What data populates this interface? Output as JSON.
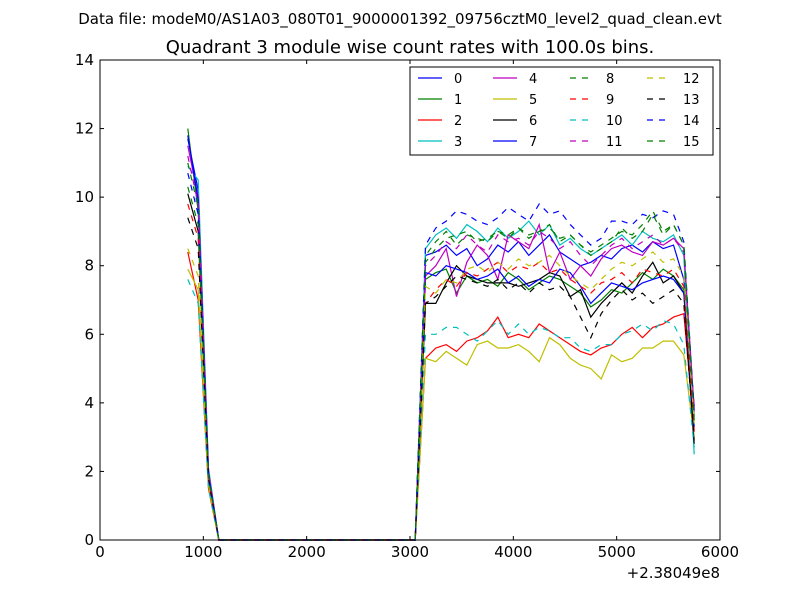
{
  "page": {
    "suptitle": "Data file: modeM0/AS1A03_080T01_9000001392_09756cztM0_level2_quad_clean.evt"
  },
  "chart_data": {
    "type": "line",
    "title": "Quadrant 3 module wise count rates with 100.0s bins.",
    "xlabel": "",
    "ylabel": "",
    "x_offset_label": "+2.38049e8",
    "xlim": [
      0,
      6000
    ],
    "ylim": [
      0,
      14
    ],
    "x_ticks": [
      0,
      1000,
      2000,
      3000,
      4000,
      5000,
      6000
    ],
    "x_tick_labels": [
      "0",
      "1000",
      "2000",
      "3000",
      "4000",
      "5000",
      "6000"
    ],
    "y_ticks": [
      0,
      2,
      4,
      6,
      8,
      10,
      12,
      14
    ],
    "y_tick_labels": [
      "0",
      "2",
      "4",
      "6",
      "8",
      "10",
      "12",
      "14"
    ],
    "legend_position": "top-right",
    "legend_columns": 4,
    "x": [
      850,
      950,
      1050,
      1150,
      1250,
      1350,
      1450,
      1550,
      1650,
      1750,
      1850,
      1950,
      2050,
      2150,
      2250,
      2350,
      2450,
      2550,
      2650,
      2750,
      2850,
      2950,
      3050,
      3150,
      3250,
      3350,
      3450,
      3550,
      3650,
      3750,
      3850,
      3950,
      4050,
      4150,
      4250,
      4350,
      4450,
      4550,
      4650,
      4750,
      4850,
      4950,
      5050,
      5150,
      5250,
      5350,
      5450,
      5550,
      5650,
      5750
    ],
    "series": [
      {
        "name": "0",
        "color": "#0000ff",
        "dashed": false,
        "values": [
          11.7,
          10.2,
          2.0,
          0,
          0,
          0,
          0,
          0,
          0,
          0,
          0,
          0,
          0,
          0,
          0,
          0,
          0,
          0,
          0,
          0,
          0,
          0,
          0,
          8.3,
          8.4,
          8.6,
          8.3,
          8.5,
          8.0,
          8.2,
          8.6,
          8.4,
          8.7,
          8.3,
          8.6,
          8.9,
          8.4,
          8.2,
          8.0,
          8.1,
          8.3,
          8.2,
          8.5,
          8.6,
          8.4,
          8.7,
          8.5,
          8.6,
          7.6,
          3.9
        ]
      },
      {
        "name": "1",
        "color": "#008000",
        "dashed": false,
        "values": [
          12.0,
          9.6,
          1.8,
          0,
          0,
          0,
          0,
          0,
          0,
          0,
          0,
          0,
          0,
          0,
          0,
          0,
          0,
          0,
          0,
          0,
          0,
          0,
          0,
          7.6,
          7.8,
          7.9,
          7.2,
          7.7,
          7.5,
          7.6,
          7.4,
          7.8,
          7.6,
          7.3,
          7.5,
          7.7,
          7.6,
          7.4,
          7.2,
          6.8,
          7.0,
          7.3,
          7.2,
          7.5,
          7.8,
          7.6,
          7.9,
          7.7,
          7.3,
          3.6
        ]
      },
      {
        "name": "2",
        "color": "#ff0000",
        "dashed": false,
        "values": [
          8.4,
          7.0,
          1.5,
          0,
          0,
          0,
          0,
          0,
          0,
          0,
          0,
          0,
          0,
          0,
          0,
          0,
          0,
          0,
          0,
          0,
          0,
          0,
          0,
          5.3,
          5.6,
          5.7,
          5.5,
          5.8,
          5.9,
          6.1,
          6.5,
          5.9,
          6.0,
          5.9,
          6.3,
          6.1,
          5.9,
          5.7,
          5.5,
          5.4,
          5.6,
          5.7,
          6.0,
          6.2,
          5.9,
          6.2,
          6.3,
          6.5,
          6.6,
          3.2
        ]
      },
      {
        "name": "3",
        "color": "#00bfbf",
        "dashed": false,
        "values": [
          10.9,
          10.5,
          2.1,
          0,
          0,
          0,
          0,
          0,
          0,
          0,
          0,
          0,
          0,
          0,
          0,
          0,
          0,
          0,
          0,
          0,
          0,
          0,
          0,
          8.5,
          8.9,
          9.1,
          8.8,
          9.2,
          9.0,
          8.7,
          9.1,
          8.8,
          9.0,
          9.3,
          8.9,
          9.2,
          8.6,
          8.8,
          8.5,
          8.3,
          8.5,
          8.7,
          8.9,
          8.6,
          9.0,
          8.8,
          8.7,
          8.9,
          8.3,
          2.5
        ]
      },
      {
        "name": "4",
        "color": "#bf00bf",
        "dashed": false,
        "values": [
          11.5,
          10.0,
          2.0,
          0,
          0,
          0,
          0,
          0,
          0,
          0,
          0,
          0,
          0,
          0,
          0,
          0,
          0,
          0,
          0,
          0,
          0,
          0,
          0,
          7.7,
          8.0,
          8.5,
          7.1,
          8.1,
          8.6,
          8.3,
          7.6,
          8.9,
          8.7,
          8.5,
          9.2,
          7.8,
          8.4,
          7.6,
          8.0,
          7.7,
          8.2,
          8.5,
          8.6,
          8.4,
          8.3,
          8.7,
          8.6,
          8.8,
          8.5,
          3.8
        ]
      },
      {
        "name": "5",
        "color": "#bfbf00",
        "dashed": false,
        "values": [
          7.9,
          7.3,
          1.6,
          0,
          0,
          0,
          0,
          0,
          0,
          0,
          0,
          0,
          0,
          0,
          0,
          0,
          0,
          0,
          0,
          0,
          0,
          0,
          0,
          5.3,
          5.2,
          5.5,
          5.3,
          5.1,
          5.7,
          5.8,
          5.6,
          5.6,
          5.7,
          5.5,
          5.2,
          5.9,
          5.7,
          5.3,
          5.1,
          5.0,
          4.7,
          5.4,
          5.2,
          5.3,
          5.6,
          5.6,
          5.8,
          5.8,
          5.4,
          3.0
        ]
      },
      {
        "name": "6",
        "color": "#000000",
        "dashed": false,
        "values": [
          10.1,
          9.0,
          1.9,
          0,
          0,
          0,
          0,
          0,
          0,
          0,
          0,
          0,
          0,
          0,
          0,
          0,
          0,
          0,
          0,
          0,
          0,
          0,
          0,
          6.9,
          6.9,
          7.5,
          8.0,
          7.7,
          7.6,
          7.5,
          7.5,
          7.5,
          7.4,
          7.5,
          7.6,
          7.8,
          7.7,
          7.1,
          7.3,
          6.5,
          6.9,
          7.2,
          7.5,
          7.2,
          7.7,
          8.1,
          7.5,
          7.7,
          7.2,
          2.8
        ]
      },
      {
        "name": "7",
        "color": "#0000ff",
        "dashed": false,
        "values": [
          11.8,
          9.9,
          1.9,
          0,
          0,
          0,
          0,
          0,
          0,
          0,
          0,
          0,
          0,
          0,
          0,
          0,
          0,
          0,
          0,
          0,
          0,
          0,
          0,
          7.8,
          7.7,
          8.0,
          7.9,
          7.8,
          7.6,
          7.7,
          7.9,
          7.5,
          7.7,
          7.4,
          7.6,
          7.5,
          7.9,
          7.8,
          7.4,
          6.9,
          7.2,
          7.5,
          7.4,
          7.3,
          7.5,
          7.6,
          7.7,
          7.6,
          7.2,
          3.3
        ]
      },
      {
        "name": "8",
        "color": "#008000",
        "dashed": true,
        "values": [
          11.0,
          9.7,
          1.9,
          0,
          0,
          0,
          0,
          0,
          0,
          0,
          0,
          0,
          0,
          0,
          0,
          0,
          0,
          0,
          0,
          0,
          0,
          0,
          0,
          8.3,
          8.7,
          9.0,
          8.6,
          8.9,
          8.8,
          8.7,
          9.0,
          8.9,
          9.1,
          8.8,
          9.0,
          9.2,
          8.7,
          8.9,
          8.6,
          8.3,
          8.5,
          8.7,
          9.1,
          8.8,
          9.0,
          9.5,
          8.9,
          9.2,
          8.6,
          3.4
        ]
      },
      {
        "name": "9",
        "color": "#ff0000",
        "dashed": true,
        "values": [
          9.8,
          8.8,
          1.7,
          0,
          0,
          0,
          0,
          0,
          0,
          0,
          0,
          0,
          0,
          0,
          0,
          0,
          0,
          0,
          0,
          0,
          0,
          0,
          0,
          6.9,
          7.3,
          7.6,
          7.4,
          7.8,
          7.7,
          7.9,
          8.1,
          7.8,
          8.0,
          7.9,
          8.1,
          7.8,
          7.9,
          7.6,
          7.4,
          7.2,
          7.5,
          7.6,
          7.8,
          7.5,
          7.9,
          7.8,
          7.7,
          7.9,
          7.4,
          3.1
        ]
      },
      {
        "name": "10",
        "color": "#00bfbf",
        "dashed": true,
        "values": [
          7.6,
          6.9,
          1.5,
          0,
          0,
          0,
          0,
          0,
          0,
          0,
          0,
          0,
          0,
          0,
          0,
          0,
          0,
          0,
          0,
          0,
          0,
          0,
          0,
          6.0,
          6.0,
          6.2,
          6.2,
          6.0,
          5.8,
          6.1,
          6.4,
          6.0,
          6.3,
          6.0,
          6.2,
          6.1,
          5.9,
          5.9,
          5.6,
          5.5,
          5.7,
          5.7,
          6.0,
          6.1,
          6.3,
          6.1,
          6.4,
          6.3,
          5.7,
          2.7
        ]
      },
      {
        "name": "11",
        "color": "#bf00bf",
        "dashed": true,
        "values": [
          11.2,
          9.8,
          2.0,
          0,
          0,
          0,
          0,
          0,
          0,
          0,
          0,
          0,
          0,
          0,
          0,
          0,
          0,
          0,
          0,
          0,
          0,
          0,
          0,
          8.0,
          8.3,
          8.7,
          8.5,
          8.9,
          8.6,
          8.4,
          8.9,
          8.7,
          8.8,
          8.6,
          9.0,
          8.8,
          8.5,
          8.7,
          8.3,
          8.0,
          8.3,
          8.6,
          8.8,
          8.5,
          8.7,
          8.9,
          8.6,
          8.8,
          8.4,
          3.7
        ]
      },
      {
        "name": "12",
        "color": "#bfbf00",
        "dashed": true,
        "values": [
          8.5,
          7.7,
          1.6,
          0,
          0,
          0,
          0,
          0,
          0,
          0,
          0,
          0,
          0,
          0,
          0,
          0,
          0,
          0,
          0,
          0,
          0,
          0,
          0,
          7.4,
          7.2,
          7.6,
          7.5,
          7.9,
          8.0,
          7.8,
          8.1,
          7.9,
          8.2,
          8.0,
          8.1,
          8.3,
          8.0,
          7.7,
          7.5,
          7.3,
          7.6,
          7.9,
          8.1,
          8.0,
          8.2,
          8.4,
          8.1,
          8.2,
          7.7,
          3.4
        ]
      },
      {
        "name": "13",
        "color": "#000000",
        "dashed": true,
        "values": [
          9.4,
          8.5,
          1.8,
          0,
          0,
          0,
          0,
          0,
          0,
          0,
          0,
          0,
          0,
          0,
          0,
          0,
          0,
          0,
          0,
          0,
          0,
          0,
          0,
          6.9,
          7.1,
          7.4,
          7.7,
          7.6,
          7.5,
          7.4,
          7.6,
          7.3,
          7.5,
          7.2,
          7.5,
          7.3,
          7.4,
          7.1,
          6.5,
          5.9,
          6.6,
          7.0,
          7.3,
          7.0,
          7.2,
          6.9,
          7.1,
          7.3,
          6.9,
          2.9
        ]
      },
      {
        "name": "14",
        "color": "#0000ff",
        "dashed": true,
        "values": [
          10.7,
          9.5,
          1.9,
          0,
          0,
          0,
          0,
          0,
          0,
          0,
          0,
          0,
          0,
          0,
          0,
          0,
          0,
          0,
          0,
          0,
          0,
          0,
          0,
          8.6,
          9.1,
          9.3,
          9.6,
          9.5,
          9.3,
          9.2,
          9.4,
          9.7,
          9.5,
          9.3,
          9.8,
          9.5,
          9.6,
          9.2,
          8.9,
          8.6,
          8.8,
          9.3,
          9.3,
          9.2,
          9.5,
          9.4,
          9.6,
          9.5,
          8.7,
          3.7
        ]
      },
      {
        "name": "15",
        "color": "#008000",
        "dashed": true,
        "values": [
          10.3,
          9.2,
          1.8,
          0,
          0,
          0,
          0,
          0,
          0,
          0,
          0,
          0,
          0,
          0,
          0,
          0,
          0,
          0,
          0,
          0,
          0,
          0,
          0,
          8.1,
          8.5,
          8.8,
          8.9,
          9.0,
          8.7,
          8.8,
          9.0,
          8.8,
          9.1,
          8.9,
          9.0,
          9.1,
          8.8,
          8.9,
          8.6,
          8.4,
          8.6,
          8.8,
          9.0,
          8.9,
          9.2,
          9.6,
          9.0,
          9.2,
          8.6,
          3.5
        ]
      }
    ]
  }
}
